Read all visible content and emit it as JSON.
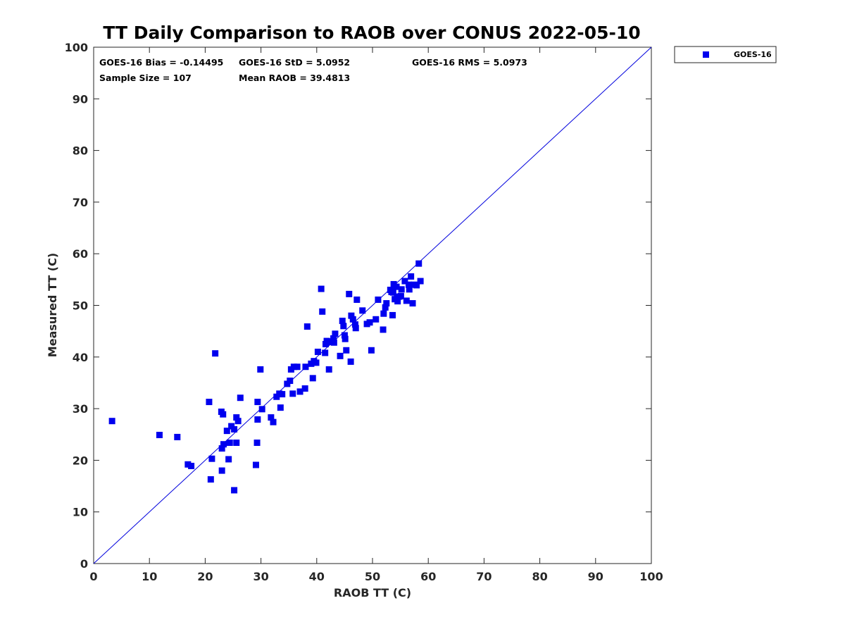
{
  "colors": {
    "series": "#0000ee",
    "refline": "#0000dd",
    "axis": "#262626"
  },
  "chart_data": {
    "type": "scatter",
    "title": "TT Daily Comparison to RAOB over CONUS 2022-05-10",
    "xlabel": "RAOB TT (C)",
    "ylabel": "Measured TT (C)",
    "xlim": [
      0,
      100
    ],
    "ylim": [
      0,
      100
    ],
    "xticks": [
      "0",
      "10",
      "20",
      "30",
      "40",
      "50",
      "60",
      "70",
      "80",
      "90",
      "100"
    ],
    "yticks": [
      "0",
      "10",
      "20",
      "30",
      "40",
      "50",
      "60",
      "70",
      "80",
      "90",
      "100"
    ],
    "grid": false,
    "legend_position": "outside top-right",
    "reference_line": "y = x",
    "stats": {
      "bias": "GOES-16 Bias = -0.14495",
      "std": "GOES-16 StD = 5.0952",
      "rms": "GOES-16 RMS = 5.0973",
      "sample": "Sample Size = 107",
      "mean": "Mean RAOB = 39.4813"
    },
    "series": [
      {
        "name": "GOES-16",
        "marker": "square",
        "points": [
          [
            3.3,
            27.6
          ],
          [
            11.8,
            24.9
          ],
          [
            15.0,
            24.5
          ],
          [
            16.9,
            19.2
          ],
          [
            17.5,
            18.9
          ],
          [
            20.7,
            31.3
          ],
          [
            21.0,
            16.3
          ],
          [
            21.2,
            20.3
          ],
          [
            21.8,
            40.7
          ],
          [
            22.9,
            29.4
          ],
          [
            23.0,
            22.3
          ],
          [
            23.0,
            18.0
          ],
          [
            23.2,
            28.9
          ],
          [
            23.3,
            23.1
          ],
          [
            23.9,
            25.7
          ],
          [
            24.2,
            20.2
          ],
          [
            24.4,
            23.4
          ],
          [
            24.7,
            26.6
          ],
          [
            25.2,
            26.0
          ],
          [
            25.2,
            14.2
          ],
          [
            25.6,
            28.3
          ],
          [
            25.6,
            23.4
          ],
          [
            25.9,
            27.6
          ],
          [
            26.3,
            32.1
          ],
          [
            29.1,
            19.1
          ],
          [
            29.3,
            23.4
          ],
          [
            29.4,
            31.3
          ],
          [
            29.4,
            27.9
          ],
          [
            29.9,
            37.6
          ],
          [
            30.2,
            29.9
          ],
          [
            31.8,
            28.3
          ],
          [
            32.2,
            27.4
          ],
          [
            32.8,
            32.3
          ],
          [
            33.3,
            32.9
          ],
          [
            33.5,
            30.2
          ],
          [
            33.8,
            32.8
          ],
          [
            34.7,
            34.8
          ],
          [
            35.2,
            35.4
          ],
          [
            35.4,
            37.6
          ],
          [
            35.7,
            32.9
          ],
          [
            35.9,
            38.1
          ],
          [
            36.5,
            38.1
          ],
          [
            37.0,
            33.3
          ],
          [
            37.9,
            33.9
          ],
          [
            38.0,
            38.1
          ],
          [
            38.3,
            45.9
          ],
          [
            39.0,
            38.7
          ],
          [
            39.3,
            35.9
          ],
          [
            39.5,
            39.2
          ],
          [
            39.9,
            38.9
          ],
          [
            40.2,
            41.0
          ],
          [
            40.8,
            53.2
          ],
          [
            41.0,
            48.8
          ],
          [
            41.5,
            40.8
          ],
          [
            41.6,
            42.5
          ],
          [
            41.8,
            43.1
          ],
          [
            42.2,
            37.6
          ],
          [
            42.5,
            42.9
          ],
          [
            43.0,
            43.6
          ],
          [
            43.1,
            42.8
          ],
          [
            43.3,
            44.5
          ],
          [
            44.2,
            40.2
          ],
          [
            44.6,
            47.0
          ],
          [
            44.8,
            46.0
          ],
          [
            45.0,
            44.2
          ],
          [
            45.1,
            43.5
          ],
          [
            45.3,
            41.3
          ],
          [
            45.8,
            52.2
          ],
          [
            46.1,
            39.1
          ],
          [
            46.2,
            48.0
          ],
          [
            46.5,
            47.3
          ],
          [
            46.9,
            46.3
          ],
          [
            47.0,
            45.6
          ],
          [
            47.2,
            51.1
          ],
          [
            48.2,
            49.0
          ],
          [
            49.0,
            46.4
          ],
          [
            49.5,
            46.7
          ],
          [
            49.8,
            41.3
          ],
          [
            50.6,
            47.3
          ],
          [
            51.0,
            51.1
          ],
          [
            51.9,
            45.3
          ],
          [
            52.0,
            48.4
          ],
          [
            52.3,
            49.6
          ],
          [
            52.5,
            50.4
          ],
          [
            53.2,
            53.0
          ],
          [
            53.4,
            52.6
          ],
          [
            53.6,
            48.1
          ],
          [
            53.8,
            54.1
          ],
          [
            54.0,
            51.2
          ],
          [
            54.3,
            53.6
          ],
          [
            54.4,
            51.6
          ],
          [
            54.5,
            50.8
          ],
          [
            54.8,
            51.7
          ],
          [
            55.1,
            51.8
          ],
          [
            55.2,
            53.1
          ],
          [
            55.8,
            54.7
          ],
          [
            56.1,
            50.9
          ],
          [
            56.5,
            54.0
          ],
          [
            56.6,
            53.1
          ],
          [
            56.9,
            55.6
          ],
          [
            57.2,
            50.4
          ],
          [
            57.5,
            54.0
          ],
          [
            57.9,
            53.9
          ],
          [
            58.3,
            58.1
          ],
          [
            58.6,
            54.7
          ],
          [
            53.7,
            52.5
          ],
          [
            42.6,
            43.0
          ]
        ]
      }
    ]
  }
}
